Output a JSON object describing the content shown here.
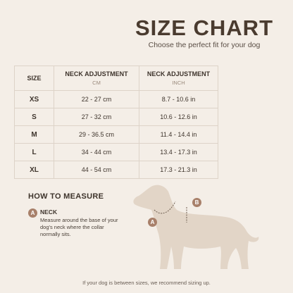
{
  "header": {
    "title": "SIZE CHART",
    "subtitle": "Choose the perfect fit for your dog"
  },
  "table": {
    "columns": [
      {
        "label": "SIZE"
      },
      {
        "label": "NECK ADJUSTMENT",
        "unit": "CM"
      },
      {
        "label": "NECK ADJUSTMENT",
        "unit": "INCH"
      }
    ],
    "rows": [
      [
        "XS",
        "22 - 27 cm",
        "8.7 - 10.6 in"
      ],
      [
        "S",
        "27 - 32 cm",
        "10.6 - 12.6 in"
      ],
      [
        "M",
        "29 - 36.5 cm",
        "11.4 - 14.4 in"
      ],
      [
        "L",
        "34 - 44 cm",
        "13.4 - 17.3 in"
      ],
      [
        "XL",
        "44 - 54 cm",
        "17.3 - 21.3 in"
      ]
    ]
  },
  "measure": {
    "title": "HOW TO MEASURE",
    "items": [
      {
        "marker": "A",
        "label": "NECK",
        "description": "Measure around the base of your dog's neck where the collar normally sits."
      }
    ]
  },
  "diagram": {
    "markers": [
      "A",
      "B"
    ]
  },
  "footer": "If your dog is between sizes, we recommend sizing up."
}
